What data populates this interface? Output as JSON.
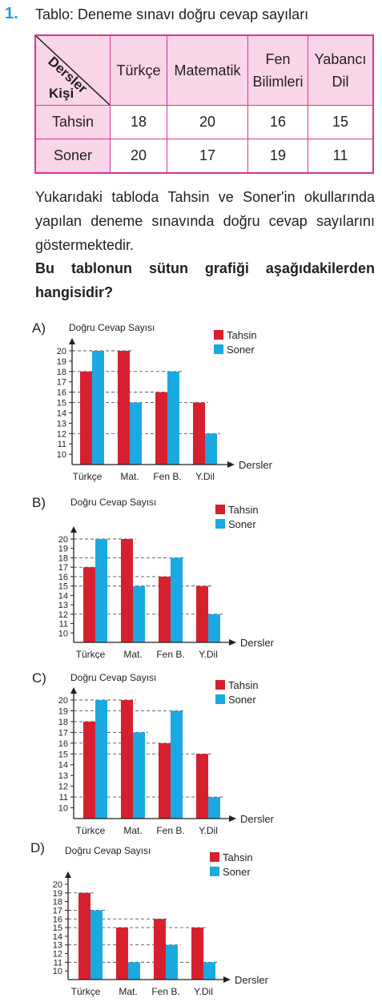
{
  "question": {
    "number": "1.",
    "title": "Tablo: Deneme sınavı doğru cevap sayıları",
    "table": {
      "corner_top": "Dersler",
      "corner_bottom": "Kişi",
      "columns": [
        "Türkçe",
        "Matematik",
        "Fen\nBilimleri",
        "Yabancı\nDil"
      ],
      "rows": [
        {
          "name": "Tahsin",
          "values": [
            "18",
            "20",
            "16",
            "15"
          ]
        },
        {
          "name": "Soner",
          "values": [
            "20",
            "17",
            "19",
            "11"
          ]
        }
      ]
    },
    "paragraph": "Yukarıdaki tabloda Tahsin ve Soner'in okullarında yapılan deneme sınavında doğru cevap sayılarını göstermektedir.",
    "prompt": "Bu tablonun sütun grafiği aşağıdakilerden hangisidir?"
  },
  "colors": {
    "tahsin": "#d7202f",
    "soner": "#1ba9e1",
    "border": "#d6359a",
    "header_bg": "#f9d5e8"
  },
  "chart_data": [
    {
      "option": "A)",
      "type": "bar",
      "ylabel": "Doğru Cevap Sayısı",
      "xlabel": "Dersler",
      "categories": [
        "Türkçe",
        "Mat.",
        "Fen B.",
        "Y.Dil"
      ],
      "yticks": [
        10,
        11,
        12,
        13,
        14,
        15,
        16,
        17,
        18,
        19,
        20
      ],
      "ylim": [
        9,
        20
      ],
      "series": [
        {
          "name": "Tahsin",
          "values": [
            18,
            20,
            16,
            15
          ]
        },
        {
          "name": "Soner",
          "values": [
            20,
            15,
            18,
            12
          ]
        }
      ]
    },
    {
      "option": "B)",
      "type": "bar",
      "ylabel": "Doğru Cevap Sayısı",
      "xlabel": "Dersler",
      "categories": [
        "Türkçe",
        "Mat.",
        "Fen B.",
        "Y.Dil"
      ],
      "yticks": [
        10,
        11,
        12,
        13,
        14,
        15,
        16,
        17,
        18,
        19,
        20
      ],
      "ylim": [
        9,
        20
      ],
      "series": [
        {
          "name": "Tahsin",
          "values": [
            17,
            20,
            16,
            15
          ]
        },
        {
          "name": "Soner",
          "values": [
            20,
            15,
            18,
            12
          ]
        }
      ]
    },
    {
      "option": "C)",
      "type": "bar",
      "ylabel": "Doğru Cevap Sayısı",
      "xlabel": "Dersler",
      "categories": [
        "Türkçe",
        "Mat.",
        "Fen B.",
        "Y.Dil"
      ],
      "yticks": [
        10,
        11,
        12,
        13,
        14,
        15,
        16,
        17,
        18,
        19,
        20
      ],
      "ylim": [
        9,
        20
      ],
      "series": [
        {
          "name": "Tahsin",
          "values": [
            18,
            20,
            16,
            15
          ]
        },
        {
          "name": "Soner",
          "values": [
            20,
            17,
            19,
            11
          ]
        }
      ]
    },
    {
      "option": "D)",
      "type": "bar",
      "ylabel": "Doğru Cevap Sayısı",
      "xlabel": "Dersler",
      "categories": [
        "Türkçe",
        "Mat.",
        "Fen B.",
        "Y.Dil"
      ],
      "yticks": [
        10,
        11,
        12,
        13,
        14,
        15,
        16,
        17,
        18,
        19,
        20
      ],
      "ylim": [
        9,
        20
      ],
      "series": [
        {
          "name": "Tahsin",
          "values": [
            19,
            15,
            16,
            15
          ]
        },
        {
          "name": "Soner",
          "values": [
            17,
            11,
            13,
            11
          ]
        }
      ]
    }
  ]
}
